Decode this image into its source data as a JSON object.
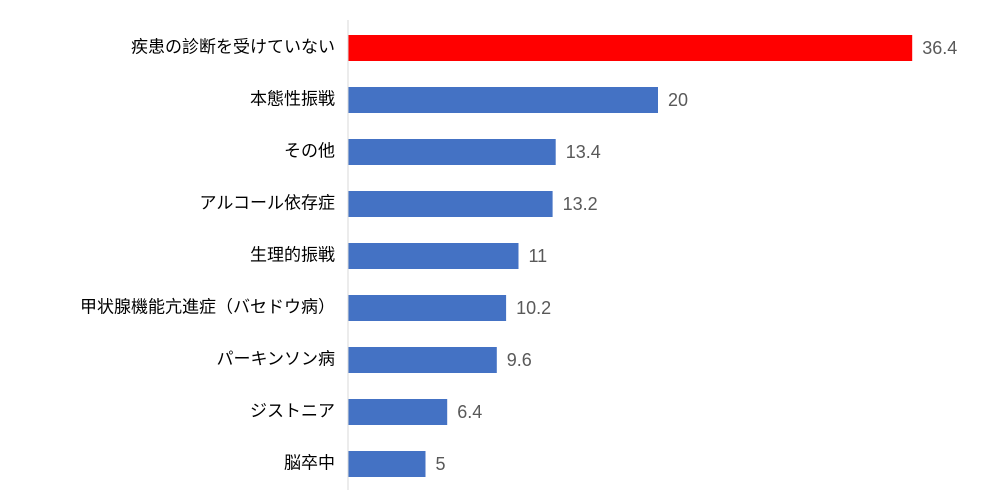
{
  "chart_data": {
    "type": "hbar",
    "categories": [
      "疾患の診断を受けていない",
      "本態性振戦",
      "その他",
      "アルコール依存症",
      "生理的振戦",
      "甲状腺機能亢進症（バセドウ病）",
      "パーキンソン病",
      "ジストニア",
      "脳卒中"
    ],
    "values": [
      36.4,
      20,
      13.4,
      13.2,
      11,
      10.2,
      9.6,
      6.4,
      5
    ],
    "colors": [
      "#ff0000",
      "#4472c4",
      "#4472c4",
      "#4472c4",
      "#4472c4",
      "#4472c4",
      "#4472c4",
      "#4472c4",
      "#4472c4"
    ],
    "xlim": [
      0,
      40
    ]
  }
}
